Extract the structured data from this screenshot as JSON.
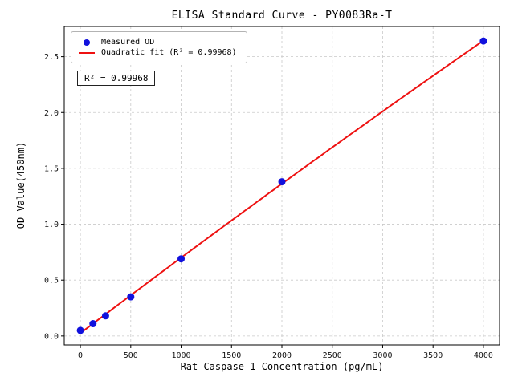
{
  "chart_data": {
    "type": "scatter",
    "title": "ELISA Standard Curve - PY0083Ra-T",
    "xlabel": "Rat Caspase-1 Concentration (pg/mL)",
    "ylabel": "OD Value(450nm)",
    "series": [
      {
        "name": "Measured OD",
        "type": "scatter",
        "x": [
          0,
          125,
          250,
          500,
          1000,
          2000,
          4000
        ],
        "y": [
          0.05,
          0.11,
          0.18,
          0.35,
          0.69,
          1.38,
          2.64
        ]
      },
      {
        "name": "Quadratic fit (R² = 0.99968)",
        "type": "quadratic-fit-line"
      }
    ],
    "annotation": "R² = 0.99968",
    "x_ticks": [
      0,
      500,
      1000,
      1500,
      2000,
      2500,
      3000,
      3500,
      4000
    ],
    "y_ticks": [
      0.0,
      0.5,
      1.0,
      1.5,
      2.0,
      2.5
    ],
    "xlim": [
      -160,
      4160
    ],
    "ylim": [
      -0.08,
      2.77
    ],
    "grid": true,
    "legend_position": "upper left",
    "colors": {
      "points": "#1111dd",
      "line": "#ee1111",
      "grid": "#c9c9c9",
      "axes": "#000000"
    }
  }
}
